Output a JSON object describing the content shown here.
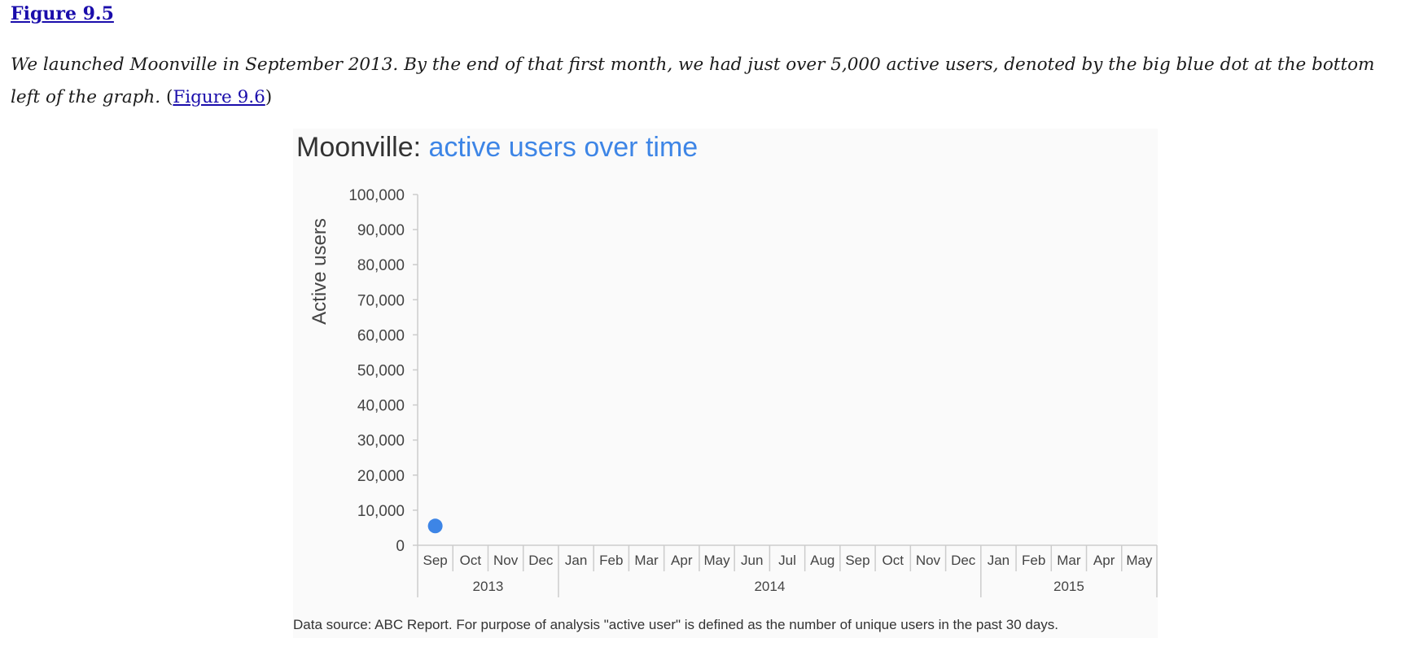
{
  "figure_link": "Figure 9.5",
  "paragraph": {
    "text": "We launched Moonville in September 2013. By the end of that first month, we had just over 5,000 active users, denoted by the big blue dot at the bottom left of the graph.",
    "open_paren": " (",
    "link": "Figure 9.6",
    "close_paren": ")"
  },
  "colors": {
    "accent": "#3d85e6",
    "title": "#333333",
    "axis": "#cccccc",
    "text": "#444444"
  },
  "chart_data": {
    "type": "scatter",
    "title_prefix": "Moonville: ",
    "title_highlight": "active users over time",
    "ylabel": "Active users",
    "xlabel": "",
    "ylim": [
      0,
      100000
    ],
    "y_ticks": [
      "0",
      "10,000",
      "20,000",
      "30,000",
      "40,000",
      "50,000",
      "60,000",
      "70,000",
      "80,000",
      "90,000",
      "100,000"
    ],
    "y_tick_values": [
      0,
      10000,
      20000,
      30000,
      40000,
      50000,
      60000,
      70000,
      80000,
      90000,
      100000
    ],
    "categories": [
      "Sep",
      "Oct",
      "Nov",
      "Dec",
      "Jan",
      "Feb",
      "Mar",
      "Apr",
      "May",
      "Jun",
      "Jul",
      "Aug",
      "Sep",
      "Oct",
      "Nov",
      "Dec",
      "Jan",
      "Feb",
      "Mar",
      "Apr",
      "May"
    ],
    "years": [
      {
        "label": "2013",
        "start": 0,
        "end": 4
      },
      {
        "label": "2014",
        "start": 4,
        "end": 16
      },
      {
        "label": "2015",
        "start": 16,
        "end": 21
      }
    ],
    "series": [
      {
        "points": [
          {
            "x": "Sep 2013",
            "index": 0,
            "y": 5500
          }
        ]
      }
    ],
    "grid": false,
    "legend": "none"
  },
  "caption": "Data source: ABC Report. For purpose of analysis \"active user\" is defined as the number of unique users in the past 30 days."
}
